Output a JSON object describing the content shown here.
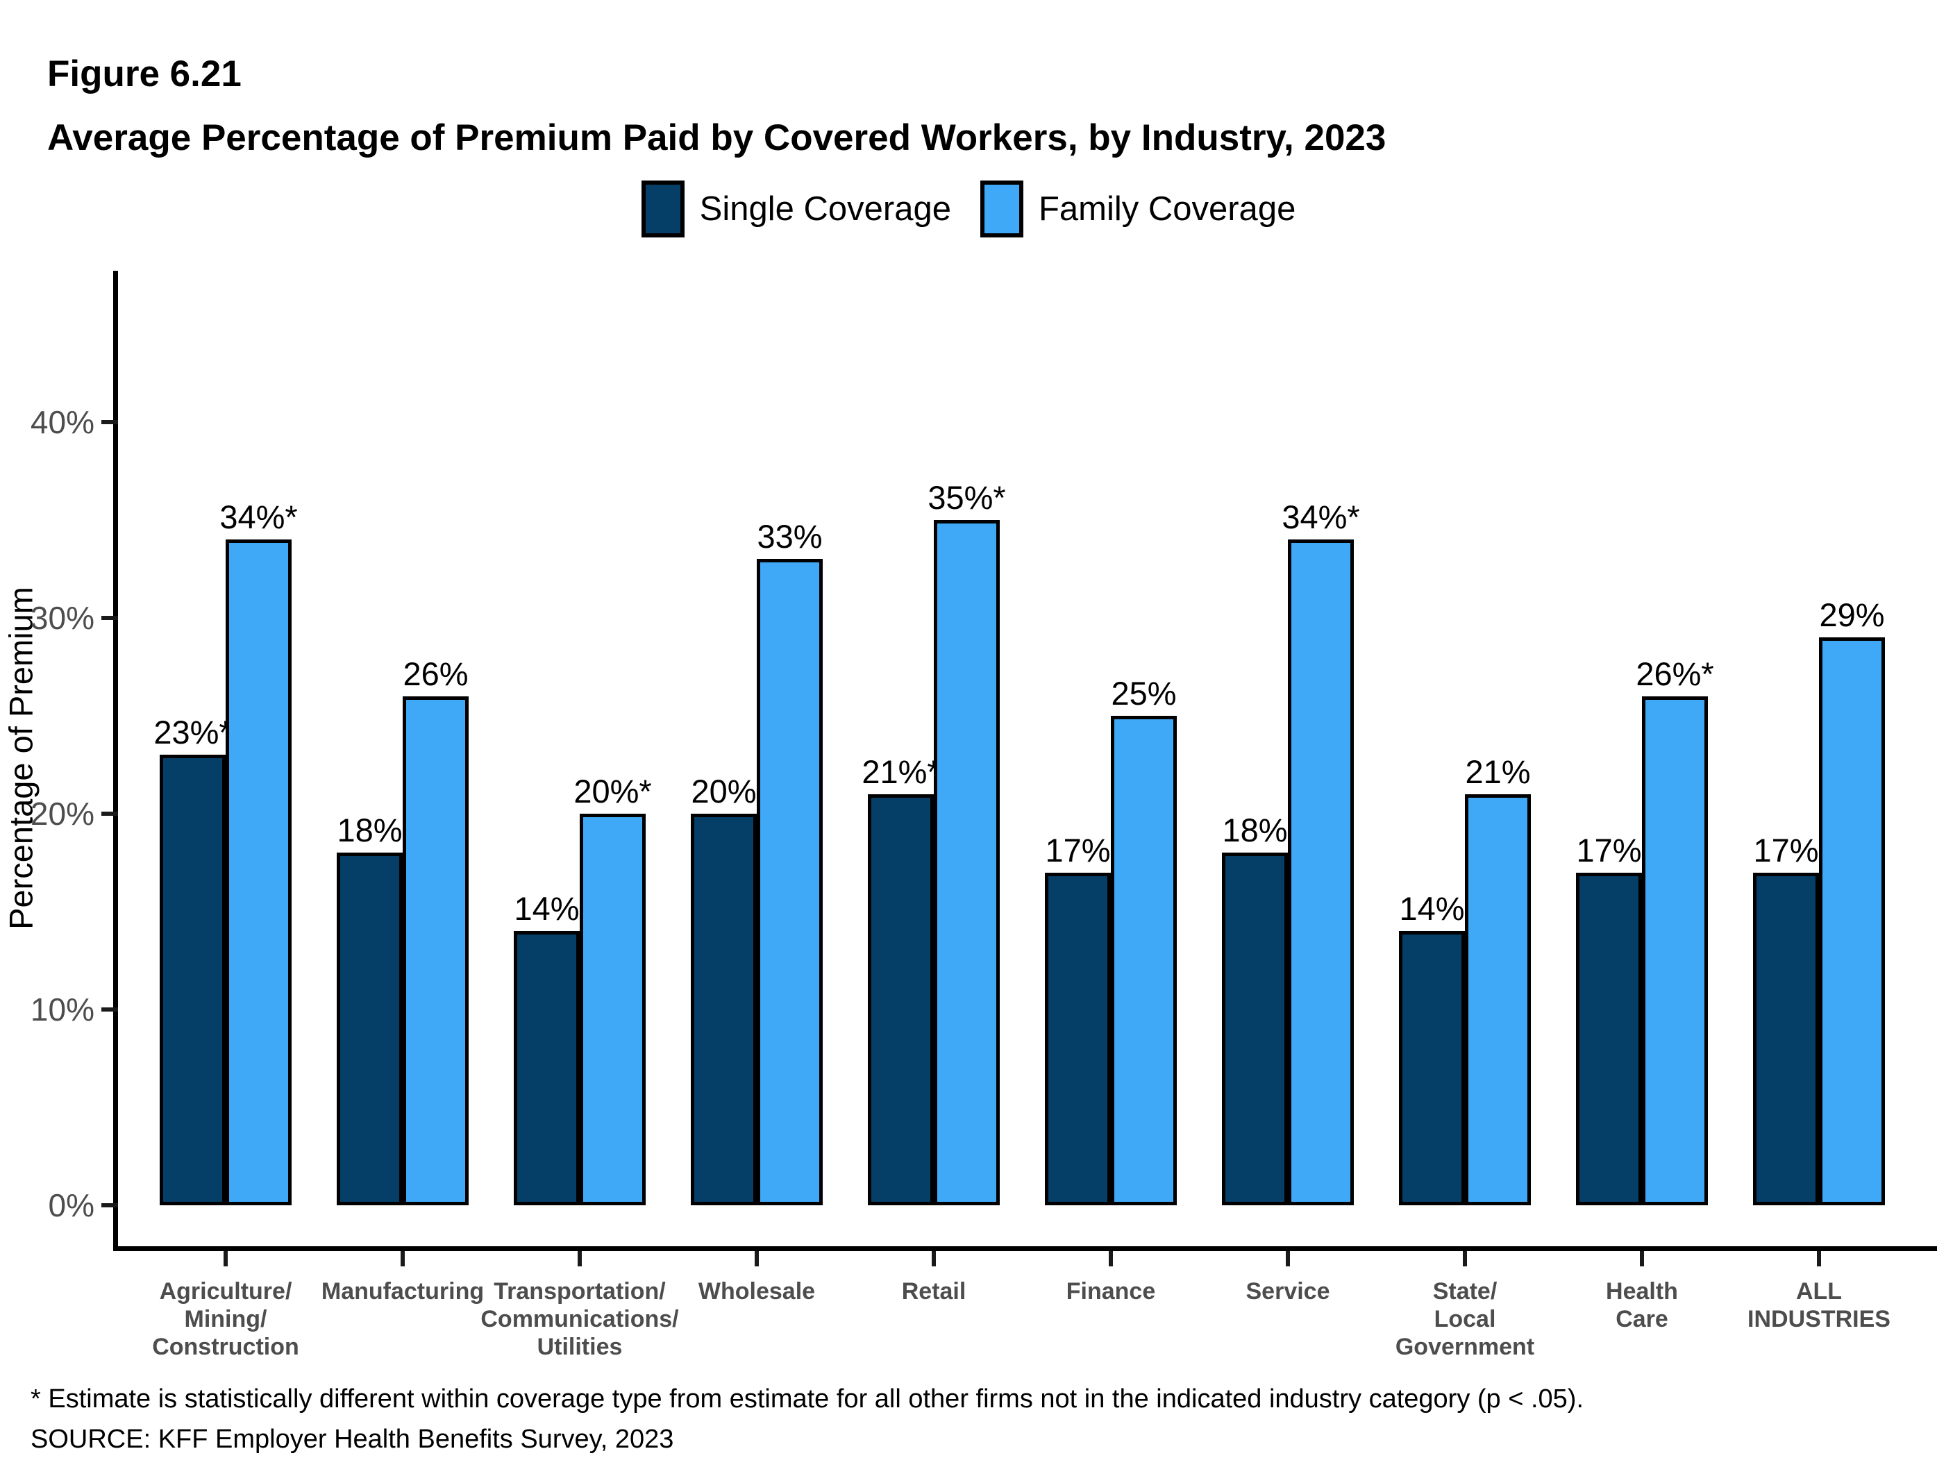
{
  "header": {
    "figure_label": "Figure 6.21",
    "title": "Average Percentage of Premium Paid by Covered Workers, by Industry, 2023"
  },
  "chart_data": {
    "type": "bar",
    "title": "Average Percentage of Premium Paid by Covered Workers, by Industry, 2023",
    "ylabel": "Percentage of Premium",
    "xlabel": "",
    "ylim": [
      0,
      46
    ],
    "grid": false,
    "legend_position": "top-center",
    "yticks": [
      {
        "value": 0,
        "label": "0%"
      },
      {
        "value": 10,
        "label": "10%"
      },
      {
        "value": 20,
        "label": "20%"
      },
      {
        "value": 30,
        "label": "30%"
      },
      {
        "value": 40,
        "label": "40%"
      }
    ],
    "categories": [
      "Agriculture/\nMining/\nConstruction",
      "Manufacturing",
      "Transportation/\nCommunications/\nUtilities",
      "Wholesale",
      "Retail",
      "Finance",
      "Service",
      "State/\nLocal\nGovernment",
      "Health\nCare",
      "ALL\nINDUSTRIES"
    ],
    "series": [
      {
        "name": "Single Coverage",
        "color": "#053E66",
        "values": [
          23,
          18,
          14,
          20,
          21,
          17,
          18,
          14,
          17,
          17
        ],
        "labels": [
          "23%*",
          "18%",
          "14%",
          "20%",
          "21%*",
          "17%",
          "18%",
          "14%",
          "17%",
          "17%"
        ]
      },
      {
        "name": "Family Coverage",
        "color": "#3FA9F8",
        "values": [
          34,
          26,
          20,
          33,
          35,
          25,
          34,
          21,
          26,
          29
        ],
        "labels": [
          "34%*",
          "26%",
          "20%*",
          "33%",
          "35%*",
          "25%",
          "34%*",
          "21%",
          "26%*",
          "29%"
        ]
      }
    ],
    "divider_before_category": "ALL\nINDUSTRIES",
    "divider_color": "#F7941E"
  },
  "footnotes": {
    "asterisk": "* Estimate is statistically different within coverage type from estimate for all other firms not in the indicated industry category (p < .05).",
    "source": "SOURCE: KFF Employer Health Benefits Survey, 2023"
  }
}
